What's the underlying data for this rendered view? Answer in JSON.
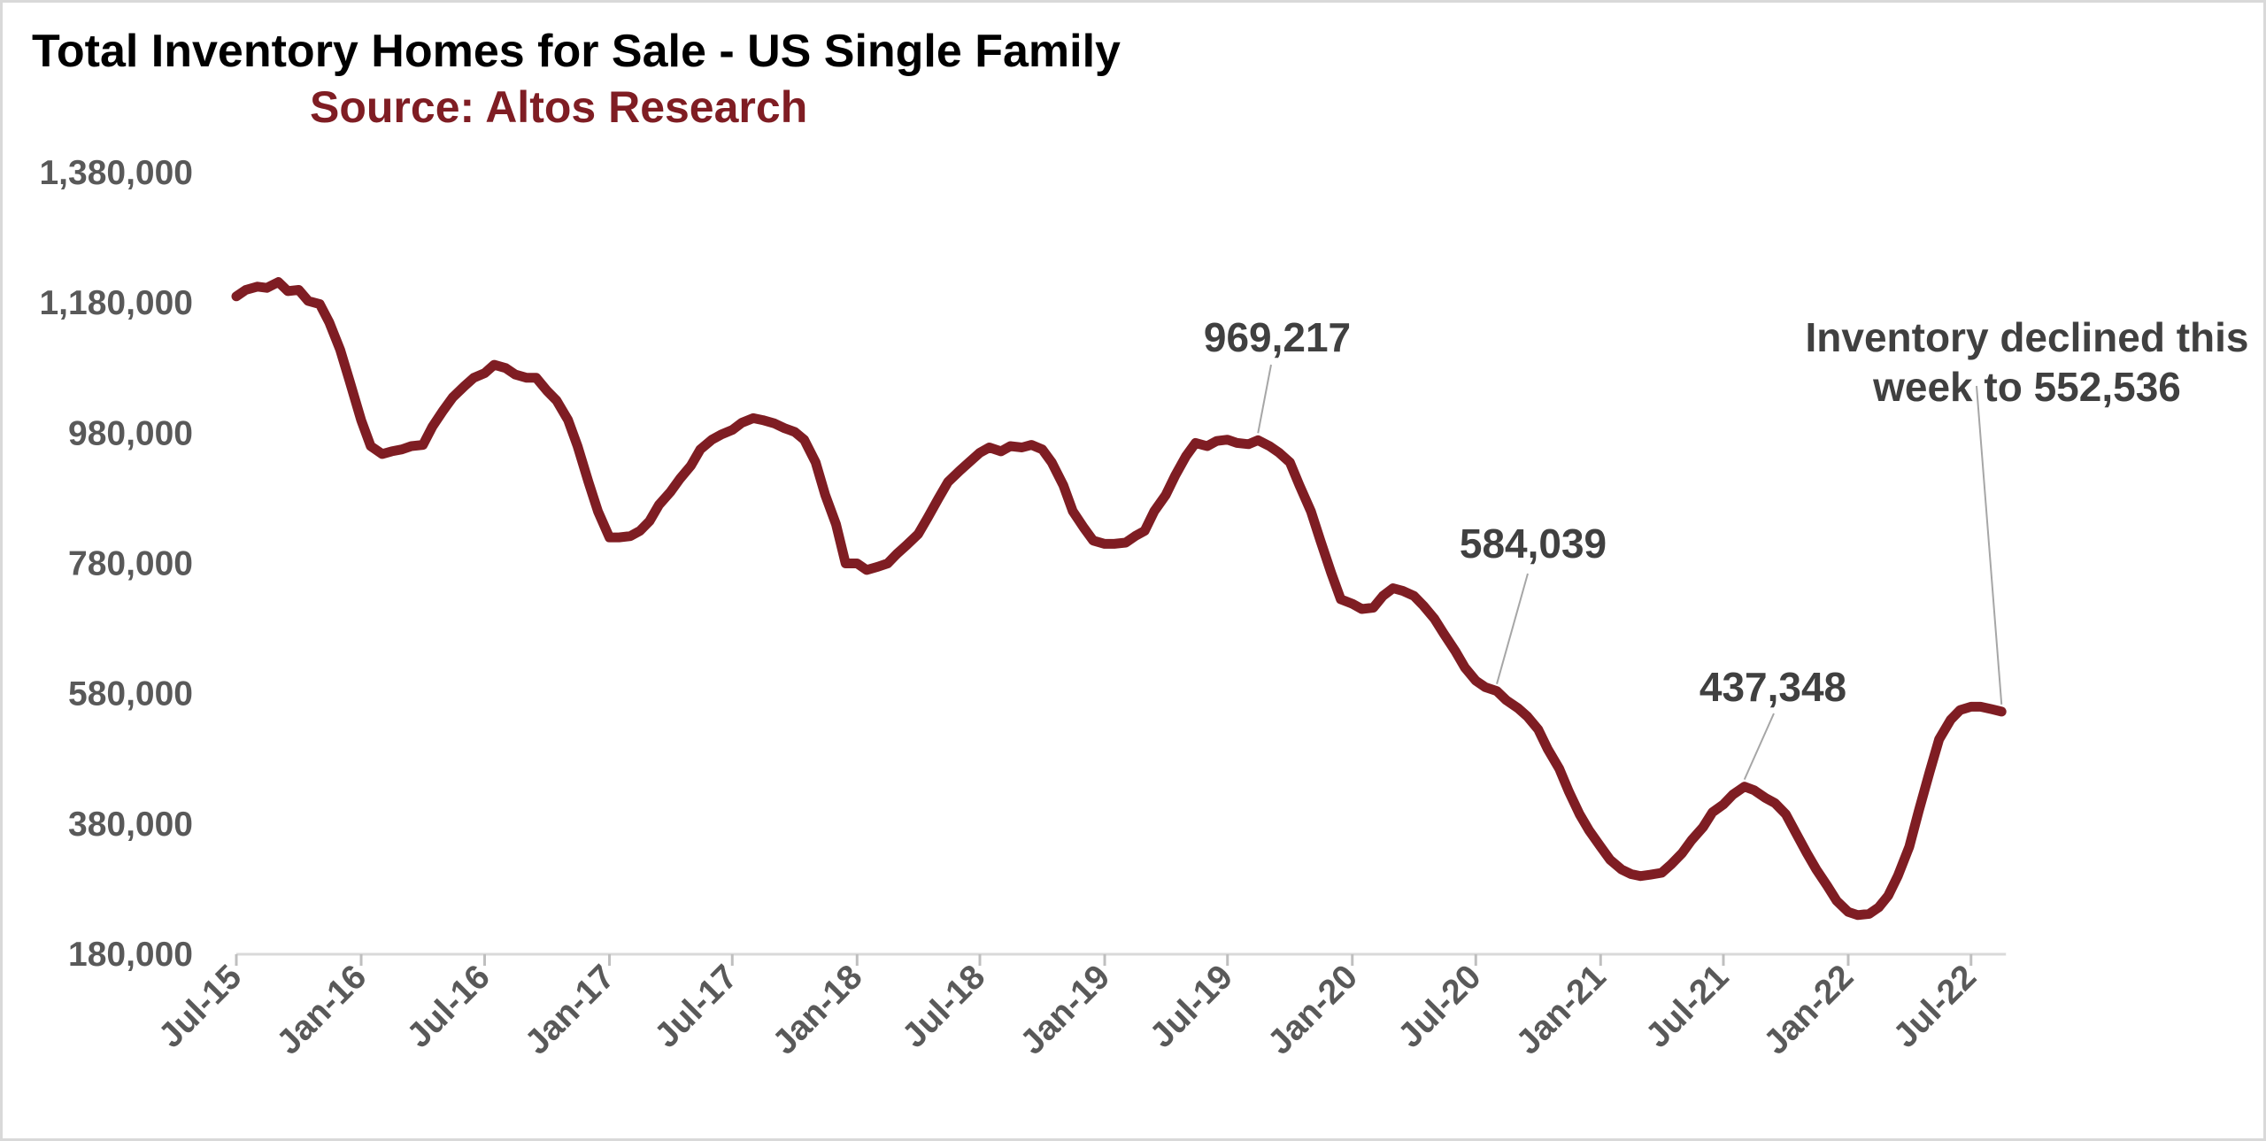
{
  "chart_data": {
    "type": "line",
    "title": "Total Inventory Homes for Sale - US Single Family",
    "subtitle": "Source: Altos Research",
    "xlabel": "",
    "ylabel": "",
    "ylim": [
      180000,
      1380000
    ],
    "yticks": [
      180000,
      380000,
      580000,
      780000,
      980000,
      1180000,
      1380000
    ],
    "ytick_labels": [
      "180,000",
      "380,000",
      "580,000",
      "780,000",
      "980,000",
      "1,180,000",
      "1,380,000"
    ],
    "xlim": [
      "2015-07-01",
      "2022-09-15"
    ],
    "xticks": [
      "2015-07-01",
      "2016-01-01",
      "2016-07-01",
      "2017-01-01",
      "2017-07-01",
      "2018-01-01",
      "2018-07-01",
      "2019-01-01",
      "2019-07-01",
      "2020-01-01",
      "2020-07-01",
      "2021-01-01",
      "2021-07-01",
      "2022-01-01",
      "2022-07-01"
    ],
    "xtick_labels": [
      "Jul-15",
      "Jan-16",
      "Jul-16",
      "Jan-17",
      "Jul-17",
      "Jan-18",
      "Jul-18",
      "Jan-19",
      "Jul-19",
      "Jan-20",
      "Jul-20",
      "Jan-21",
      "Jul-21",
      "Jan-22",
      "Jul-22"
    ],
    "grid": false,
    "line_color": "#7f1d23",
    "series": [
      {
        "name": "",
        "points": [
          [
            "2015-07-01",
            1190000
          ],
          [
            "2015-07-15",
            1200000
          ],
          [
            "2015-08-01",
            1205000
          ],
          [
            "2015-08-15",
            1203000
          ],
          [
            "2015-09-01",
            1212000
          ],
          [
            "2015-09-15",
            1198000
          ],
          [
            "2015-10-01",
            1200000
          ],
          [
            "2015-10-15",
            1183000
          ],
          [
            "2015-11-01",
            1178000
          ],
          [
            "2015-11-15",
            1150000
          ],
          [
            "2015-12-01",
            1108000
          ],
          [
            "2015-12-15",
            1060000
          ],
          [
            "2016-01-01",
            1000000
          ],
          [
            "2016-01-15",
            960000
          ],
          [
            "2016-02-01",
            948000
          ],
          [
            "2016-02-15",
            952000
          ],
          [
            "2016-03-01",
            955000
          ],
          [
            "2016-03-15",
            960000
          ],
          [
            "2016-04-01",
            962000
          ],
          [
            "2016-04-15",
            990000
          ],
          [
            "2016-05-01",
            1015000
          ],
          [
            "2016-05-15",
            1035000
          ],
          [
            "2016-06-01",
            1052000
          ],
          [
            "2016-06-15",
            1065000
          ],
          [
            "2016-07-01",
            1072000
          ],
          [
            "2016-07-15",
            1085000
          ],
          [
            "2016-08-01",
            1080000
          ],
          [
            "2016-08-15",
            1070000
          ],
          [
            "2016-09-01",
            1065000
          ],
          [
            "2016-09-15",
            1065000
          ],
          [
            "2016-10-01",
            1045000
          ],
          [
            "2016-10-15",
            1030000
          ],
          [
            "2016-11-01",
            1000000
          ],
          [
            "2016-11-15",
            960000
          ],
          [
            "2016-12-01",
            905000
          ],
          [
            "2016-12-15",
            860000
          ],
          [
            "2017-01-01",
            820000
          ],
          [
            "2017-01-15",
            820000
          ],
          [
            "2017-02-01",
            822000
          ],
          [
            "2017-02-15",
            830000
          ],
          [
            "2017-03-01",
            845000
          ],
          [
            "2017-03-15",
            870000
          ],
          [
            "2017-04-01",
            890000
          ],
          [
            "2017-04-15",
            910000
          ],
          [
            "2017-05-01",
            930000
          ],
          [
            "2017-05-15",
            955000
          ],
          [
            "2017-06-01",
            970000
          ],
          [
            "2017-06-15",
            978000
          ],
          [
            "2017-07-01",
            985000
          ],
          [
            "2017-07-15",
            996000
          ],
          [
            "2017-08-01",
            1003000
          ],
          [
            "2017-08-15",
            1000000
          ],
          [
            "2017-09-01",
            995000
          ],
          [
            "2017-09-15",
            988000
          ],
          [
            "2017-10-01",
            982000
          ],
          [
            "2017-10-15",
            970000
          ],
          [
            "2017-11-01",
            935000
          ],
          [
            "2017-11-15",
            885000
          ],
          [
            "2017-12-01",
            840000
          ],
          [
            "2017-12-15",
            780000
          ],
          [
            "2018-01-01",
            780000
          ],
          [
            "2018-01-15",
            770000
          ],
          [
            "2018-02-01",
            775000
          ],
          [
            "2018-02-15",
            780000
          ],
          [
            "2018-03-01",
            795000
          ],
          [
            "2018-03-15",
            808000
          ],
          [
            "2018-04-01",
            825000
          ],
          [
            "2018-04-15",
            850000
          ],
          [
            "2018-05-01",
            880000
          ],
          [
            "2018-05-15",
            905000
          ],
          [
            "2018-06-01",
            922000
          ],
          [
            "2018-06-15",
            935000
          ],
          [
            "2018-07-01",
            950000
          ],
          [
            "2018-07-15",
            958000
          ],
          [
            "2018-08-01",
            952000
          ],
          [
            "2018-08-15",
            960000
          ],
          [
            "2018-09-01",
            958000
          ],
          [
            "2018-09-15",
            962000
          ],
          [
            "2018-10-01",
            955000
          ],
          [
            "2018-10-15",
            935000
          ],
          [
            "2018-11-01",
            900000
          ],
          [
            "2018-11-15",
            860000
          ],
          [
            "2018-12-01",
            835000
          ],
          [
            "2018-12-15",
            815000
          ],
          [
            "2019-01-01",
            810000
          ],
          [
            "2019-01-15",
            810000
          ],
          [
            "2019-02-01",
            812000
          ],
          [
            "2019-02-15",
            822000
          ],
          [
            "2019-03-01",
            830000
          ],
          [
            "2019-03-15",
            860000
          ],
          [
            "2019-04-01",
            885000
          ],
          [
            "2019-04-15",
            915000
          ],
          [
            "2019-05-01",
            945000
          ],
          [
            "2019-05-15",
            965000
          ],
          [
            "2019-06-01",
            960000
          ],
          [
            "2019-06-15",
            968000
          ],
          [
            "2019-07-01",
            970000
          ],
          [
            "2019-07-15",
            965000
          ],
          [
            "2019-08-01",
            963000
          ],
          [
            "2019-08-15",
            969217
          ],
          [
            "2019-09-01",
            960000
          ],
          [
            "2019-09-15",
            950000
          ],
          [
            "2019-10-01",
            935000
          ],
          [
            "2019-10-15",
            900000
          ],
          [
            "2019-11-01",
            860000
          ],
          [
            "2019-11-15",
            815000
          ],
          [
            "2019-12-01",
            765000
          ],
          [
            "2019-12-15",
            725000
          ],
          [
            "2020-01-01",
            718000
          ],
          [
            "2020-01-15",
            710000
          ],
          [
            "2020-02-01",
            712000
          ],
          [
            "2020-02-15",
            730000
          ],
          [
            "2020-03-01",
            742000
          ],
          [
            "2020-03-15",
            738000
          ],
          [
            "2020-04-01",
            730000
          ],
          [
            "2020-04-15",
            715000
          ],
          [
            "2020-05-01",
            695000
          ],
          [
            "2020-05-15",
            672000
          ],
          [
            "2020-06-01",
            645000
          ],
          [
            "2020-06-15",
            620000
          ],
          [
            "2020-07-01",
            600000
          ],
          [
            "2020-07-15",
            590000
          ],
          [
            "2020-08-01",
            584039
          ],
          [
            "2020-08-15",
            570000
          ],
          [
            "2020-09-01",
            558000
          ],
          [
            "2020-09-15",
            545000
          ],
          [
            "2020-10-01",
            525000
          ],
          [
            "2020-10-15",
            495000
          ],
          [
            "2020-11-01",
            465000
          ],
          [
            "2020-11-15",
            430000
          ],
          [
            "2020-12-01",
            395000
          ],
          [
            "2020-12-15",
            370000
          ],
          [
            "2021-01-01",
            345000
          ],
          [
            "2021-01-15",
            325000
          ],
          [
            "2021-02-01",
            310000
          ],
          [
            "2021-02-15",
            303000
          ],
          [
            "2021-03-01",
            300000
          ],
          [
            "2021-03-15",
            302000
          ],
          [
            "2021-04-01",
            305000
          ],
          [
            "2021-04-15",
            318000
          ],
          [
            "2021-05-01",
            335000
          ],
          [
            "2021-05-15",
            355000
          ],
          [
            "2021-06-01",
            375000
          ],
          [
            "2021-06-15",
            398000
          ],
          [
            "2021-07-01",
            410000
          ],
          [
            "2021-07-15",
            425000
          ],
          [
            "2021-08-01",
            437348
          ],
          [
            "2021-08-15",
            432000
          ],
          [
            "2021-09-01",
            420000
          ],
          [
            "2021-09-15",
            412000
          ],
          [
            "2021-10-01",
            395000
          ],
          [
            "2021-10-15",
            368000
          ],
          [
            "2021-11-01",
            335000
          ],
          [
            "2021-11-15",
            310000
          ],
          [
            "2021-12-01",
            285000
          ],
          [
            "2021-12-15",
            262000
          ],
          [
            "2022-01-01",
            245000
          ],
          [
            "2022-01-15",
            240000
          ],
          [
            "2022-02-01",
            242000
          ],
          [
            "2022-02-15",
            252000
          ],
          [
            "2022-03-01",
            270000
          ],
          [
            "2022-03-15",
            300000
          ],
          [
            "2022-04-01",
            345000
          ],
          [
            "2022-04-15",
            400000
          ],
          [
            "2022-05-01",
            460000
          ],
          [
            "2022-05-15",
            510000
          ],
          [
            "2022-06-01",
            540000
          ],
          [
            "2022-06-15",
            555000
          ],
          [
            "2022-07-01",
            560000
          ],
          [
            "2022-07-15",
            560000
          ],
          [
            "2022-08-01",
            556000
          ],
          [
            "2022-08-15",
            552536
          ]
        ]
      }
    ],
    "annotations": [
      {
        "lines": [
          "969,217"
        ],
        "x": "2019-08-15",
        "y": 969217
      },
      {
        "lines": [
          "584,039"
        ],
        "x": "2020-08-01",
        "y": 584039
      },
      {
        "lines": [
          "437,348"
        ],
        "x": "2021-08-01",
        "y": 437348
      },
      {
        "lines": [
          "Inventory declined this",
          "week to 552,536"
        ],
        "x": "2022-08-15",
        "y": 552536
      }
    ]
  }
}
